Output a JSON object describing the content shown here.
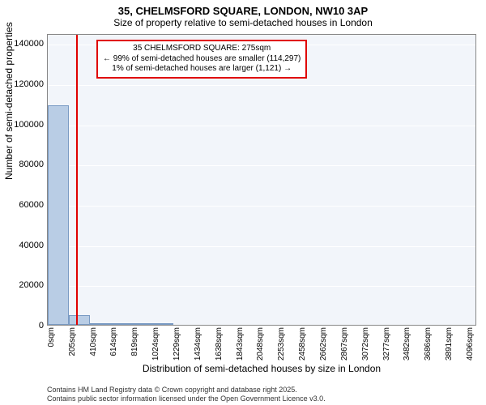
{
  "chart": {
    "type": "histogram",
    "title": "35, CHELMSFORD SQUARE, LONDON, NW10 3AP",
    "subtitle": "Size of property relative to semi-detached houses in London",
    "xlabel": "Distribution of semi-detached houses by size in London",
    "ylabel": "Number of semi-detached properties",
    "background_color": "#f2f5fa",
    "grid_color": "#ffffff",
    "bar_fill": "#b9cde5",
    "bar_border": "#7a9bc4",
    "marker_color": "#e00000",
    "annotation_border": "#e00000",
    "yticks": [
      0,
      20000,
      40000,
      60000,
      80000,
      100000,
      120000,
      140000
    ],
    "ylim": [
      0,
      145000
    ],
    "xtick_labels": [
      "0sqm",
      "205sqm",
      "410sqm",
      "614sqm",
      "819sqm",
      "1024sqm",
      "1229sqm",
      "1434sqm",
      "1638sqm",
      "1843sqm",
      "2048sqm",
      "2253sqm",
      "2458sqm",
      "2662sqm",
      "2867sqm",
      "3072sqm",
      "3277sqm",
      "3482sqm",
      "3686sqm",
      "3891sqm",
      "4096sqm"
    ],
    "xtick_values": [
      0,
      205,
      410,
      614,
      819,
      1024,
      1229,
      1434,
      1638,
      1843,
      2048,
      2253,
      2458,
      2662,
      2867,
      3072,
      3277,
      3482,
      3686,
      3891,
      4096
    ],
    "xlim": [
      0,
      4200
    ],
    "bars": [
      {
        "x0": 0,
        "x1": 205,
        "count": 109000
      },
      {
        "x0": 205,
        "x1": 410,
        "count": 5000
      },
      {
        "x0": 410,
        "x1": 614,
        "count": 900
      },
      {
        "x0": 614,
        "x1": 819,
        "count": 300
      },
      {
        "x0": 819,
        "x1": 1024,
        "count": 120
      },
      {
        "x0": 1024,
        "x1": 1229,
        "count": 60
      }
    ],
    "marker_x": 275,
    "annotation": {
      "line1": "35 CHELMSFORD SQUARE: 275sqm",
      "line2": "← 99% of semi-detached houses are smaller (114,297)",
      "line3": "1% of semi-detached houses are larger (1,121) →"
    },
    "footer_line1": "Contains HM Land Registry data © Crown copyright and database right 2025.",
    "footer_line2": "Contains public sector information licensed under the Open Government Licence v3.0."
  }
}
